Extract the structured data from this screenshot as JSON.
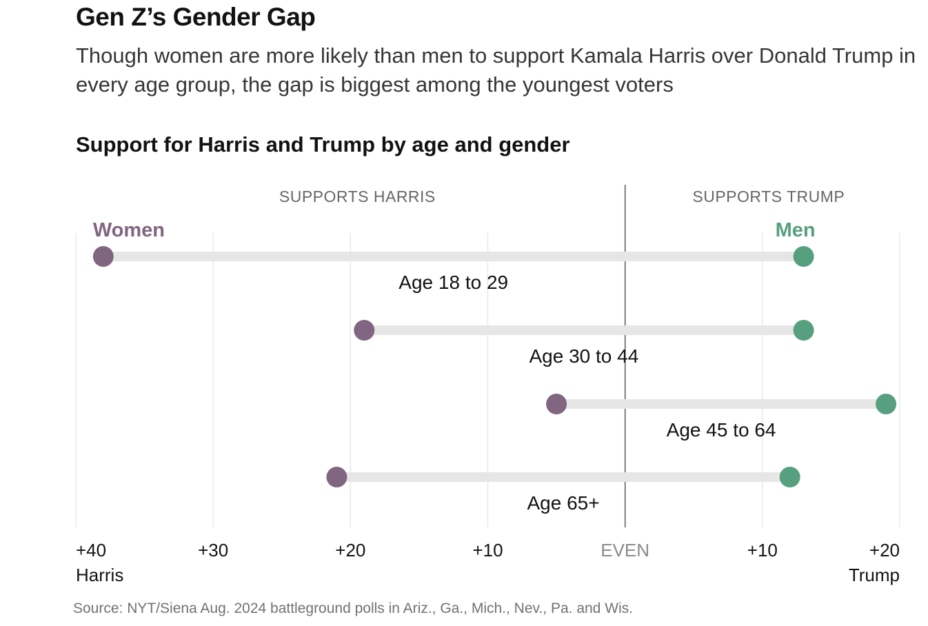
{
  "headline": "Gen Z’s Gender Gap",
  "dek": "Though women are more likely than men to support Kamala Harris over Donald Trump in every age group, the gap is biggest among the youngest voters",
  "source": "Source: NYT/Siena Aug. 2024 battleground polls in Ariz., Ga., Mich., Nev., Pa. and Wis.",
  "colors": {
    "women": "#806680",
    "men": "#57a07f",
    "track": "#e6e6e6",
    "grid": "#e8e8e8",
    "center_line": "#555555"
  },
  "chart_data": {
    "type": "dumbbell",
    "title": "Support for Harris and Trump by age and gender",
    "side_labels": {
      "left": "SUPPORTS HARRIS",
      "right": "SUPPORTS TRUMP"
    },
    "series_labels": {
      "women": "Women",
      "men": "Men"
    },
    "value_convention": "net margin; negative = Harris lead, positive = Trump lead",
    "xlim": [
      -40,
      20
    ],
    "ticks": [
      {
        "value": -40,
        "label": "+40",
        "sublabel": "Harris"
      },
      {
        "value": -30,
        "label": "+30"
      },
      {
        "value": -20,
        "label": "+20"
      },
      {
        "value": -10,
        "label": "+10"
      },
      {
        "value": 0,
        "label": "EVEN"
      },
      {
        "value": 10,
        "label": "+10"
      },
      {
        "value": 20,
        "label": "+20",
        "sublabel": "Trump"
      }
    ],
    "categories": [
      "Age 18 to 29",
      "Age 30 to 44",
      "Age 45 to 64",
      "Age 65+"
    ],
    "series": [
      {
        "name": "Women",
        "values": [
          -38,
          -19,
          -5,
          -21
        ]
      },
      {
        "name": "Men",
        "values": [
          13,
          13,
          19,
          12
        ]
      }
    ]
  }
}
